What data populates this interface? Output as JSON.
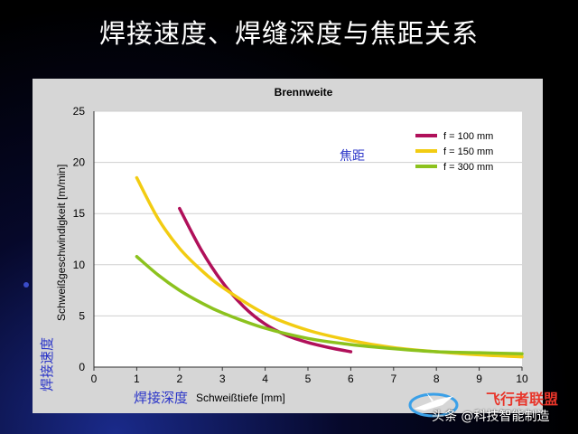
{
  "slide": {
    "title": "焊接速度、焊缝深度与焦距关系"
  },
  "watermark": {
    "brand": "飞行者联盟",
    "source": "头条 @科技智能制造"
  },
  "chart_data": {
    "type": "line",
    "title": "Brennweite",
    "xlabel": "Schweißtiefe [mm]",
    "ylabel": "Schweißgeschwindigkeit [m/min]",
    "xlabel_cn": "焊接深度",
    "ylabel_cn": "焊接速度",
    "legend_title_cn": "焦距",
    "xlim": [
      0,
      10
    ],
    "ylim": [
      0,
      25
    ],
    "xticks": [
      "0",
      "1",
      "2",
      "3",
      "4",
      "5",
      "6",
      "7",
      "8",
      "9",
      "10"
    ],
    "yticks": [
      "0",
      "5",
      "10",
      "15",
      "20",
      "25"
    ],
    "grid": "horizontal",
    "legend_position": "top-right",
    "series": [
      {
        "name": "f = 100 mm",
        "color": "#b0105a",
        "x": [
          2,
          2.5,
          3,
          3.5,
          4,
          4.5,
          5,
          5.5,
          6
        ],
        "y": [
          15.5,
          11.5,
          8.3,
          5.9,
          4.2,
          3.1,
          2.4,
          1.9,
          1.5
        ]
      },
      {
        "name": "f = 150 mm",
        "color": "#f2cc12",
        "x": [
          1,
          1.5,
          2,
          2.5,
          3,
          4,
          5,
          6,
          7,
          8,
          9,
          10
        ],
        "y": [
          18.5,
          14.5,
          11.6,
          9.5,
          7.8,
          5.2,
          3.6,
          2.6,
          1.9,
          1.5,
          1.2,
          1.0
        ]
      },
      {
        "name": "f = 300 mm",
        "color": "#8cc21e",
        "x": [
          1,
          1.5,
          2,
          2.5,
          3,
          4,
          5,
          6,
          7,
          8,
          9,
          10
        ],
        "y": [
          10.8,
          9.0,
          7.5,
          6.3,
          5.3,
          3.8,
          2.8,
          2.2,
          1.8,
          1.5,
          1.4,
          1.3
        ]
      }
    ]
  }
}
